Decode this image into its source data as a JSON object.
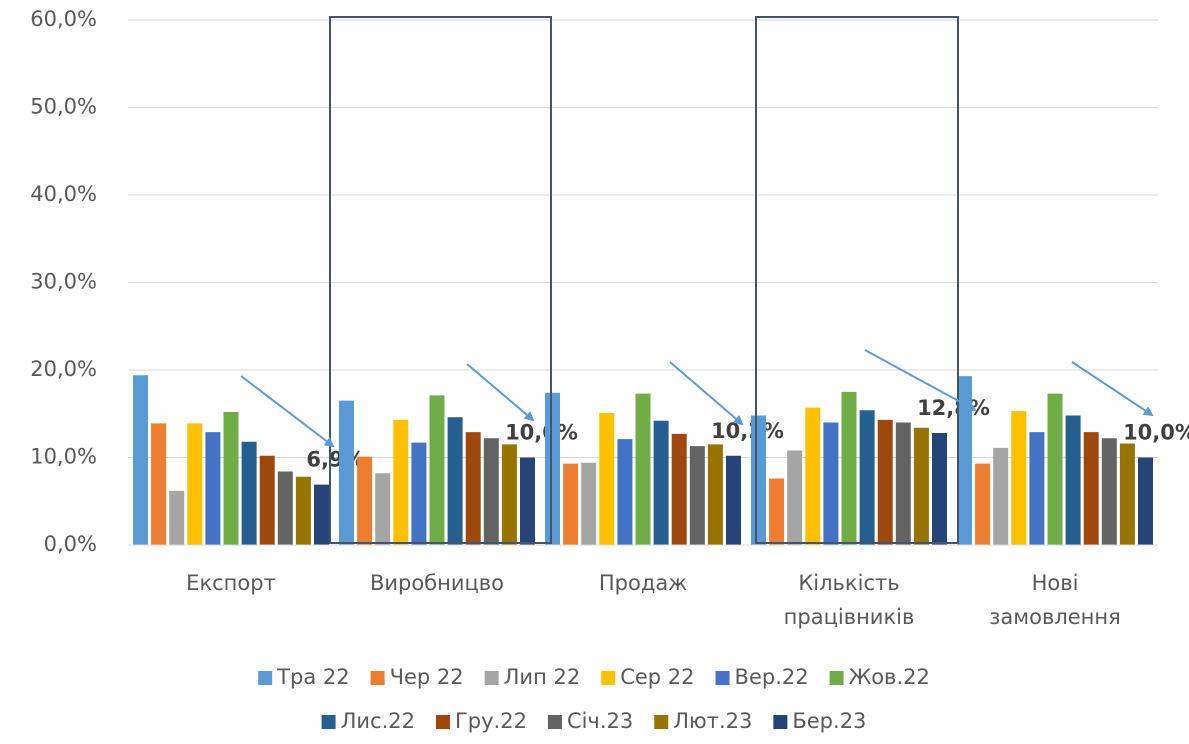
{
  "chart_data": {
    "type": "bar",
    "categories": [
      "Експорт",
      "Виробницво",
      "Продаж",
      "Кількість працівників",
      "Нові замовлення"
    ],
    "series": [
      {
        "name": "Тра 22",
        "color": "#5b9bd5",
        "values": [
          19.4,
          16.5,
          17.4,
          14.8,
          19.3
        ]
      },
      {
        "name": "Чер 22",
        "color": "#ed7d31",
        "values": [
          13.9,
          10.1,
          9.3,
          7.6,
          9.3
        ]
      },
      {
        "name": "Лип 22",
        "color": "#a5a5a5",
        "values": [
          6.2,
          8.2,
          9.4,
          10.8,
          11.1
        ]
      },
      {
        "name": "Сер 22",
        "color": "#ffc000",
        "values": [
          13.9,
          14.3,
          15.1,
          15.7,
          15.3
        ]
      },
      {
        "name": "Вер.22",
        "color": "#4472c4",
        "values": [
          12.9,
          11.7,
          12.1,
          14.0,
          12.9
        ]
      },
      {
        "name": "Жов.22",
        "color": "#70ad47",
        "values": [
          15.2,
          17.1,
          17.3,
          17.5,
          17.3
        ]
      },
      {
        "name": "Лис.22",
        "color": "#255e91",
        "values": [
          11.8,
          14.6,
          14.2,
          15.4,
          14.8
        ]
      },
      {
        "name": "Гру.22",
        "color": "#9e480e",
        "values": [
          10.2,
          12.9,
          12.7,
          14.3,
          12.9
        ]
      },
      {
        "name": "Січ.23",
        "color": "#636363",
        "values": [
          8.4,
          12.2,
          11.3,
          14.0,
          12.2
        ]
      },
      {
        "name": "Лют.23",
        "color": "#997300",
        "values": [
          7.8,
          11.5,
          11.5,
          13.4,
          11.6
        ]
      },
      {
        "name": "Бер.23",
        "color": "#264478",
        "values": [
          6.9,
          10.0,
          10.2,
          12.8,
          10.0
        ],
        "value_labels": [
          "6,9%",
          "10,0%",
          "10,2%",
          "12,8%",
          "10,0%"
        ]
      }
    ],
    "ylim": [
      0,
      60
    ],
    "yticks": [
      {
        "value": 0,
        "label": "0,0%"
      },
      {
        "value": 10,
        "label": "10,0%"
      },
      {
        "value": 20,
        "label": "20,0%"
      },
      {
        "value": 30,
        "label": "30,0%"
      },
      {
        "value": 40,
        "label": "40,0%"
      },
      {
        "value": 50,
        "label": "50,0%"
      },
      {
        "value": 60,
        "label": "60,0%"
      }
    ],
    "grid": true
  }
}
